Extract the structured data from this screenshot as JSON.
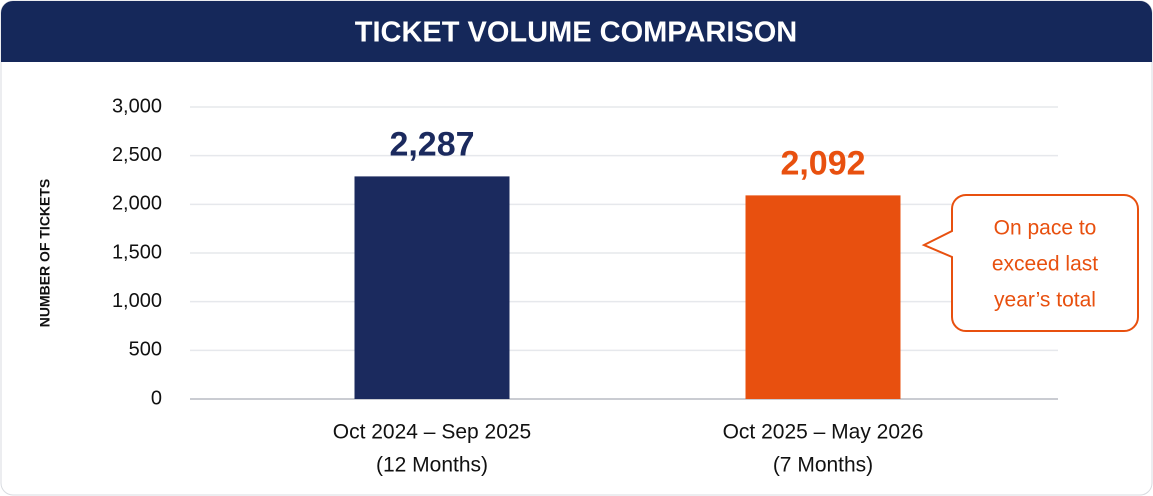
{
  "chart_data": {
    "type": "bar",
    "title": "TICKET VOLUME COMPARISON",
    "y_label": "NUMBER OF TICKETS",
    "categories": [
      "Oct 2024 – Sep 2025",
      "Oct 2025 – May 2026"
    ],
    "category_notes": [
      "(12 Months)",
      "(7 Months)"
    ],
    "values": [
      2287,
      2092
    ],
    "value_labels": [
      "2,287",
      "2,092"
    ],
    "colors": [
      "#1b2a5e",
      "#e8500f"
    ],
    "ylim": [
      0,
      3000
    ],
    "yticks": [
      0,
      500,
      {
        "value": 1000,
        "label": "1,000"
      },
      {
        "value": 1500,
        "label": "1,500"
      },
      {
        "value": 2000,
        "label": "2,000"
      },
      {
        "value": 2500,
        "label": "2,500"
      },
      {
        "value": 3000,
        "label": "3,000"
      }
    ],
    "grid": true,
    "annotation": {
      "lines": [
        "On pace to",
        "exceed last",
        "year’s total"
      ],
      "color": "#e8500f",
      "target": 1
    }
  }
}
